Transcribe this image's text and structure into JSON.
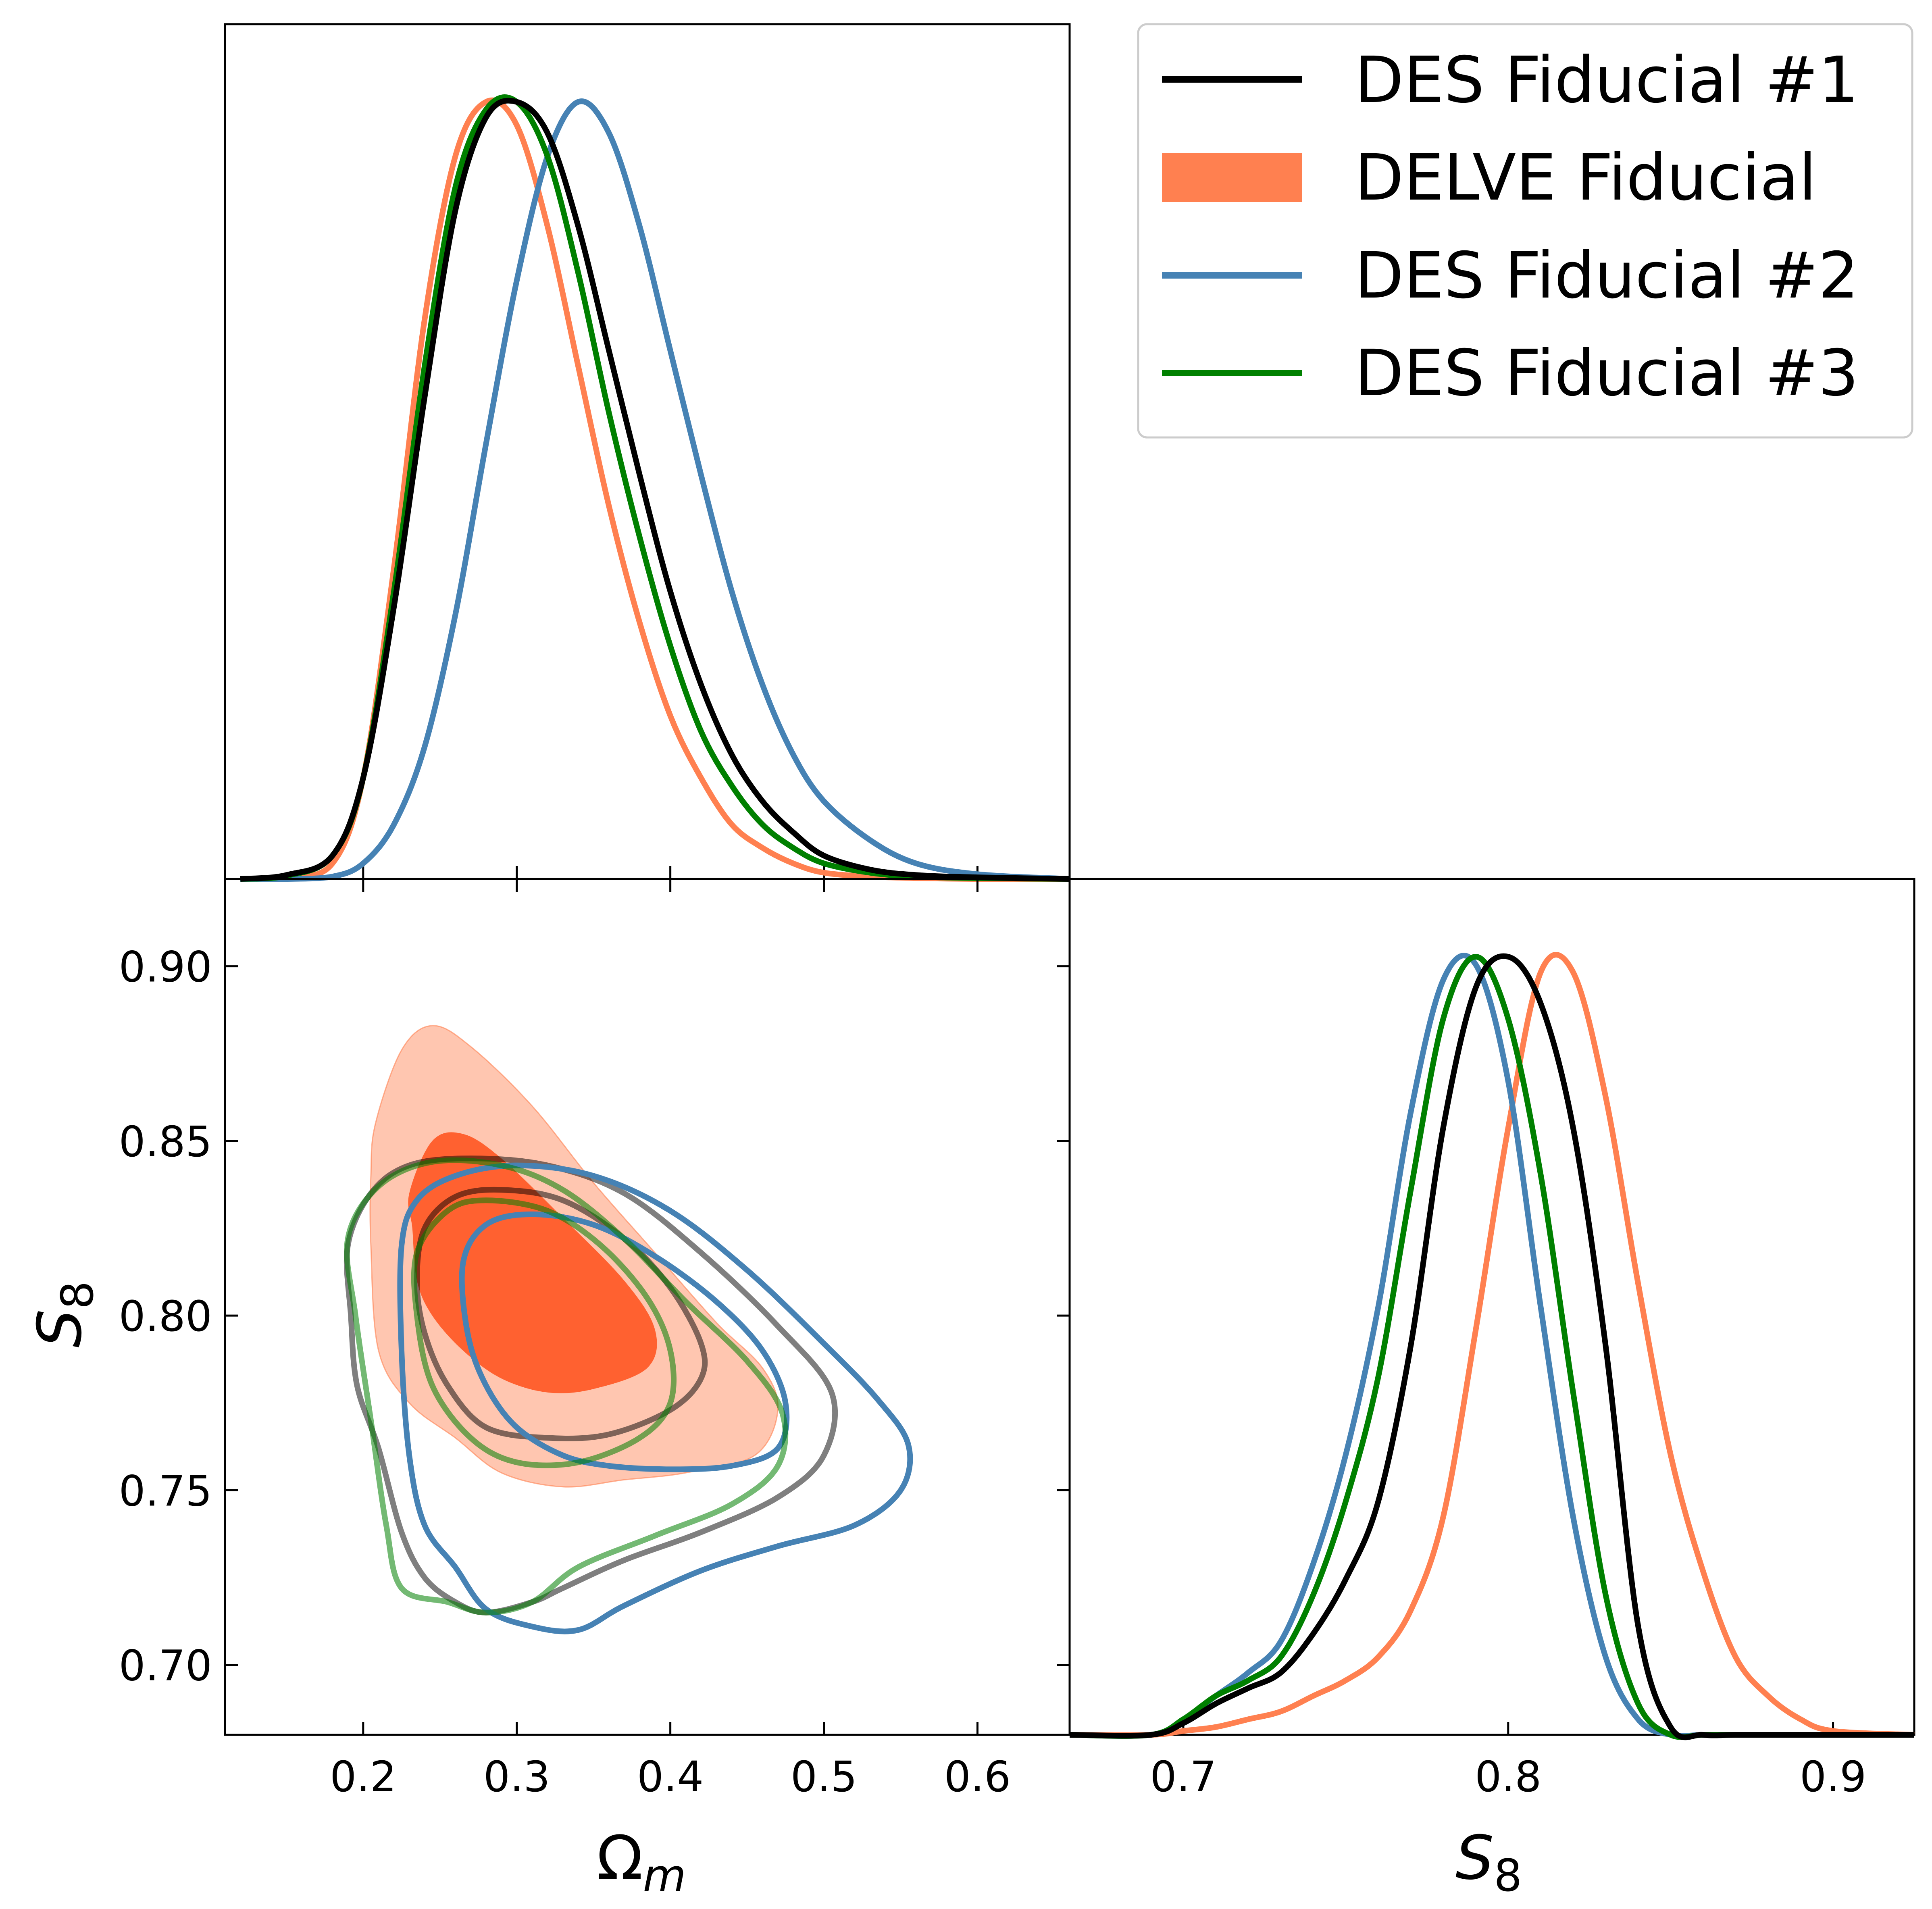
{
  "legend": {
    "entries": [
      {
        "label": "DES Fiducial #1",
        "color": "#000000",
        "style": "line"
      },
      {
        "label": "DELVE Fiducial",
        "color": "#ff8050",
        "style": "fill"
      },
      {
        "label": "DES Fiducial #2",
        "color": "#4682b4",
        "style": "line"
      },
      {
        "label": "DES Fiducial #3",
        "color": "#008000",
        "style": "line"
      }
    ],
    "placement": "top-right"
  },
  "chart_data": [
    {
      "type": "line",
      "panel": "top-left",
      "description_of_axes": "1D marginal posterior of Omega_m",
      "xlim": [
        0.11,
        0.66
      ],
      "ylim": [
        0,
        1.1
      ],
      "x": [
        0.12,
        0.15,
        0.18,
        0.2,
        0.22,
        0.24,
        0.26,
        0.28,
        0.3,
        0.32,
        0.34,
        0.36,
        0.38,
        0.4,
        0.42,
        0.44,
        0.46,
        0.48,
        0.5,
        0.53,
        0.56,
        0.6,
        0.66
      ],
      "series": [
        {
          "name": "DES Fiducial #1",
          "color": "#000000",
          "values": [
            0,
            0.005,
            0.03,
            0.13,
            0.35,
            0.62,
            0.86,
            0.98,
            1.0,
            0.96,
            0.84,
            0.68,
            0.52,
            0.37,
            0.25,
            0.16,
            0.1,
            0.06,
            0.03,
            0.012,
            0.005,
            0.002,
            0
          ]
        },
        {
          "name": "DELVE Fiducial",
          "color": "#ff8050",
          "values": [
            0,
            0.002,
            0.02,
            0.13,
            0.4,
            0.72,
            0.93,
            1.0,
            0.97,
            0.84,
            0.66,
            0.48,
            0.33,
            0.21,
            0.13,
            0.07,
            0.04,
            0.02,
            0.008,
            0.003,
            0.001,
            0,
            0
          ]
        },
        {
          "name": "DES Fiducial #2",
          "color": "#4682b4",
          "values": [
            0,
            0,
            0.003,
            0.02,
            0.07,
            0.17,
            0.34,
            0.56,
            0.77,
            0.93,
            1.0,
            0.96,
            0.84,
            0.68,
            0.52,
            0.37,
            0.25,
            0.16,
            0.1,
            0.05,
            0.02,
            0.006,
            0
          ]
        },
        {
          "name": "DES Fiducial #3",
          "color": "#008000",
          "values": [
            0,
            0.004,
            0.03,
            0.13,
            0.37,
            0.66,
            0.89,
            0.99,
            1.0,
            0.93,
            0.78,
            0.6,
            0.44,
            0.3,
            0.19,
            0.12,
            0.07,
            0.04,
            0.02,
            0.008,
            0.003,
            0.001,
            0
          ]
        }
      ],
      "xticks": [
        0.2,
        0.3,
        0.4,
        0.5,
        0.6
      ]
    },
    {
      "type": "line",
      "panel": "bottom-right",
      "xlim": [
        0.665,
        0.925
      ],
      "ylim": [
        0,
        1.1
      ],
      "xlabel": "S",
      "xlabel_sub": "8",
      "xticks": [
        0.7,
        0.8,
        0.9
      ],
      "xtick_labels": [
        "0.7",
        "0.8",
        "0.9"
      ],
      "x": [
        0.665,
        0.69,
        0.7,
        0.71,
        0.72,
        0.73,
        0.74,
        0.75,
        0.76,
        0.77,
        0.78,
        0.79,
        0.8,
        0.81,
        0.82,
        0.83,
        0.84,
        0.85,
        0.86,
        0.87,
        0.88,
        0.89,
        0.9,
        0.925
      ],
      "series": [
        {
          "name": "DES Fiducial #1",
          "color": "#000000",
          "values": [
            0,
            0,
            0.015,
            0.04,
            0.06,
            0.08,
            0.13,
            0.2,
            0.3,
            0.5,
            0.78,
            0.96,
            1.0,
            0.94,
            0.78,
            0.5,
            0.14,
            0.01,
            0,
            0,
            0,
            0,
            0,
            0
          ]
        },
        {
          "name": "DELVE Fiducial",
          "color": "#ff8050",
          "values": [
            0,
            0,
            0.005,
            0.01,
            0.02,
            0.03,
            0.05,
            0.07,
            0.1,
            0.16,
            0.28,
            0.52,
            0.78,
            0.98,
            0.98,
            0.82,
            0.58,
            0.36,
            0.21,
            0.1,
            0.05,
            0.02,
            0.005,
            0
          ]
        },
        {
          "name": "DES Fiducial #2",
          "color": "#4682b4",
          "values": [
            0,
            0,
            0.02,
            0.05,
            0.08,
            0.12,
            0.22,
            0.36,
            0.55,
            0.8,
            0.97,
            0.99,
            0.84,
            0.55,
            0.28,
            0.1,
            0.02,
            0,
            0,
            0,
            0,
            0,
            0,
            0
          ]
        },
        {
          "name": "DES Fiducial #3",
          "color": "#008000",
          "values": [
            0,
            0,
            0.02,
            0.05,
            0.07,
            0.1,
            0.18,
            0.3,
            0.46,
            0.7,
            0.92,
            1.0,
            0.92,
            0.72,
            0.44,
            0.18,
            0.04,
            0,
            0,
            0,
            0,
            0,
            0,
            0
          ]
        }
      ]
    },
    {
      "type": "scatter",
      "panel": "bottom-left",
      "description_of_axes": "2D confidence contours (68% and 95%)",
      "xlim": [
        0.11,
        0.66
      ],
      "ylim": [
        0.68,
        0.925
      ],
      "xlabel": "Ω",
      "xlabel_sub": "m",
      "ylabel": "S",
      "ylabel_sub": "8",
      "xticks": [
        0.2,
        0.3,
        0.4,
        0.5,
        0.6
      ],
      "xtick_labels": [
        "0.2",
        "0.3",
        "0.4",
        "0.5",
        "0.6"
      ],
      "yticks": [
        0.7,
        0.75,
        0.8,
        0.85,
        0.9
      ],
      "ytick_labels": [
        "0.70",
        "0.75",
        "0.80",
        "0.85",
        "0.90"
      ],
      "contours": [
        {
          "name": "DELVE Fiducial",
          "level": "95%",
          "color": "#ff8050",
          "filled": true,
          "opacity": 0.45,
          "points": [
            [
              0.208,
              0.855
            ],
            [
              0.225,
              0.876
            ],
            [
              0.245,
              0.883
            ],
            [
              0.27,
              0.877
            ],
            [
              0.31,
              0.86
            ],
            [
              0.35,
              0.838
            ],
            [
              0.39,
              0.818
            ],
            [
              0.43,
              0.798
            ],
            [
              0.46,
              0.785
            ],
            [
              0.47,
              0.773
            ],
            [
              0.455,
              0.76
            ],
            [
              0.41,
              0.755
            ],
            [
              0.37,
              0.753
            ],
            [
              0.33,
              0.751
            ],
            [
              0.29,
              0.755
            ],
            [
              0.26,
              0.765
            ],
            [
              0.23,
              0.775
            ],
            [
              0.21,
              0.79
            ],
            [
              0.205,
              0.82
            ],
            [
              0.205,
              0.84
            ]
          ]
        },
        {
          "name": "DELVE Fiducial",
          "level": "68%",
          "color": "#ff5522",
          "filled": true,
          "opacity": 0.9,
          "points": [
            [
              0.23,
              0.835
            ],
            [
              0.245,
              0.85
            ],
            [
              0.265,
              0.852
            ],
            [
              0.29,
              0.845
            ],
            [
              0.33,
              0.828
            ],
            [
              0.37,
              0.81
            ],
            [
              0.39,
              0.796
            ],
            [
              0.385,
              0.785
            ],
            [
              0.35,
              0.779
            ],
            [
              0.32,
              0.778
            ],
            [
              0.29,
              0.782
            ],
            [
              0.265,
              0.79
            ],
            [
              0.245,
              0.8
            ],
            [
              0.235,
              0.81
            ],
            [
              0.232,
              0.825
            ]
          ]
        },
        {
          "name": "DES Fiducial #1",
          "level": "95%",
          "color": "#000000",
          "filled": false,
          "opacity": 0.5,
          "points": [
            [
              0.19,
              0.82
            ],
            [
              0.205,
              0.835
            ],
            [
              0.23,
              0.843
            ],
            [
              0.27,
              0.845
            ],
            [
              0.32,
              0.843
            ],
            [
              0.37,
              0.835
            ],
            [
              0.42,
              0.818
            ],
            [
              0.47,
              0.797
            ],
            [
              0.505,
              0.778
            ],
            [
              0.5,
              0.76
            ],
            [
              0.47,
              0.748
            ],
            [
              0.42,
              0.738
            ],
            [
              0.37,
              0.73
            ],
            [
              0.33,
              0.722
            ],
            [
              0.31,
              0.718
            ],
            [
              0.28,
              0.715
            ],
            [
              0.26,
              0.718
            ],
            [
              0.24,
              0.725
            ],
            [
              0.225,
              0.738
            ],
            [
              0.21,
              0.762
            ],
            [
              0.196,
              0.78
            ],
            [
              0.192,
              0.8
            ]
          ]
        },
        {
          "name": "DES Fiducial #1",
          "level": "68%",
          "color": "#000000",
          "filled": false,
          "opacity": 0.5,
          "points": [
            [
              0.24,
              0.825
            ],
            [
              0.26,
              0.834
            ],
            [
              0.29,
              0.836
            ],
            [
              0.33,
              0.833
            ],
            [
              0.37,
              0.822
            ],
            [
              0.4,
              0.808
            ],
            [
              0.42,
              0.792
            ],
            [
              0.42,
              0.782
            ],
            [
              0.4,
              0.773
            ],
            [
              0.36,
              0.766
            ],
            [
              0.32,
              0.765
            ],
            [
              0.28,
              0.768
            ],
            [
              0.255,
              0.78
            ],
            [
              0.24,
              0.795
            ],
            [
              0.235,
              0.81
            ]
          ]
        },
        {
          "name": "DES Fiducial #2",
          "level": "95%",
          "color": "#4682b4",
          "filled": false,
          "opacity": 1.0,
          "points": [
            [
              0.225,
              0.82
            ],
            [
              0.235,
              0.833
            ],
            [
              0.26,
              0.84
            ],
            [
              0.3,
              0.843
            ],
            [
              0.35,
              0.84
            ],
            [
              0.4,
              0.83
            ],
            [
              0.45,
              0.813
            ],
            [
              0.5,
              0.792
            ],
            [
              0.535,
              0.776
            ],
            [
              0.555,
              0.763
            ],
            [
              0.55,
              0.75
            ],
            [
              0.52,
              0.74
            ],
            [
              0.47,
              0.734
            ],
            [
              0.42,
              0.727
            ],
            [
              0.37,
              0.717
            ],
            [
              0.34,
              0.71
            ],
            [
              0.31,
              0.711
            ],
            [
              0.28,
              0.716
            ],
            [
              0.26,
              0.728
            ],
            [
              0.24,
              0.74
            ],
            [
              0.23,
              0.76
            ],
            [
              0.225,
              0.79
            ]
          ]
        },
        {
          "name": "DES Fiducial #2",
          "level": "68%",
          "color": "#4682b4",
          "filled": false,
          "opacity": 1.0,
          "points": [
            [
              0.265,
              0.815
            ],
            [
              0.28,
              0.826
            ],
            [
              0.31,
              0.829
            ],
            [
              0.35,
              0.826
            ],
            [
              0.39,
              0.817
            ],
            [
              0.43,
              0.804
            ],
            [
              0.46,
              0.79
            ],
            [
              0.475,
              0.775
            ],
            [
              0.47,
              0.762
            ],
            [
              0.44,
              0.757
            ],
            [
              0.4,
              0.756
            ],
            [
              0.36,
              0.757
            ],
            [
              0.33,
              0.76
            ],
            [
              0.3,
              0.768
            ],
            [
              0.28,
              0.78
            ],
            [
              0.268,
              0.795
            ]
          ]
        },
        {
          "name": "DES Fiducial #3",
          "level": "95%",
          "color": "#008000",
          "filled": false,
          "opacity": 0.55,
          "points": [
            [
              0.19,
              0.822
            ],
            [
              0.21,
              0.837
            ],
            [
              0.245,
              0.844
            ],
            [
              0.29,
              0.843
            ],
            [
              0.33,
              0.836
            ],
            [
              0.37,
              0.822
            ],
            [
              0.41,
              0.804
            ],
            [
              0.45,
              0.787
            ],
            [
              0.473,
              0.772
            ],
            [
              0.47,
              0.757
            ],
            [
              0.44,
              0.746
            ],
            [
              0.39,
              0.737
            ],
            [
              0.34,
              0.728
            ],
            [
              0.31,
              0.718
            ],
            [
              0.28,
              0.715
            ],
            [
              0.255,
              0.718
            ],
            [
              0.225,
              0.722
            ],
            [
              0.215,
              0.74
            ],
            [
              0.205,
              0.77
            ],
            [
              0.195,
              0.8
            ]
          ]
        },
        {
          "name": "DES Fiducial #3",
          "level": "68%",
          "color": "#008000",
          "filled": false,
          "opacity": 0.55,
          "points": [
            [
              0.235,
              0.818
            ],
            [
              0.255,
              0.83
            ],
            [
              0.28,
              0.833
            ],
            [
              0.32,
              0.83
            ],
            [
              0.355,
              0.82
            ],
            [
              0.385,
              0.805
            ],
            [
              0.4,
              0.79
            ],
            [
              0.4,
              0.775
            ],
            [
              0.38,
              0.765
            ],
            [
              0.34,
              0.758
            ],
            [
              0.3,
              0.758
            ],
            [
              0.27,
              0.765
            ],
            [
              0.245,
              0.78
            ],
            [
              0.235,
              0.8
            ]
          ]
        }
      ]
    }
  ]
}
